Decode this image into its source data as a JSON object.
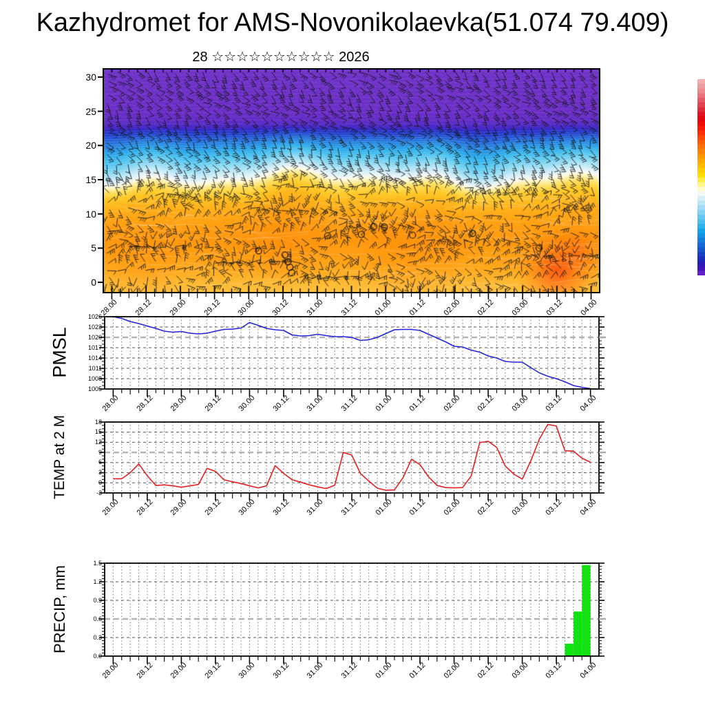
{
  "title": "Kazhydromet for AMS-Novonikolaevka(51.074 79.409)",
  "subtitle": {
    "text": "28 ☆☆☆☆☆☆☆☆☆☆ 2026"
  },
  "time_axis": {
    "step_hours": 3,
    "label_step_hours": 12,
    "labels": [
      "28.00",
      "28.12",
      "29.00",
      "29.12",
      "30.00",
      "30.12",
      "31.00",
      "31.12",
      "01.00",
      "01.12",
      "02.00",
      "02.12",
      "03.00",
      "03.12",
      "04.00"
    ]
  },
  "chart_data": [
    {
      "id": "wind_time_height_section",
      "type": "heatmap",
      "ylabel": "",
      "ylim": [
        0,
        30
      ],
      "yticks": [
        0,
        5,
        10,
        15,
        20,
        25,
        30
      ],
      "x_labels": [
        "28.00",
        "28.12",
        "29.00",
        "29.12",
        "30.00",
        "30.12",
        "31.00",
        "31.12",
        "01.00",
        "01.12",
        "02.00",
        "02.12",
        "03.00",
        "03.12",
        "04.00"
      ],
      "description": "Time-height cross-section: wind barbs over temperature-shaded bands (warm orange near surface, pale band near 15, cyan-blue 16-22, violet above 22.5); reddish hot spot near surface at 03.12-03.18",
      "gradient_stops": [
        {
          "h": -1.5,
          "color": "#FFC240"
        },
        {
          "h": 0.0,
          "color": "#FFBA34"
        },
        {
          "h": 2.0,
          "color": "#FFAA1E"
        },
        {
          "h": 4.0,
          "color": "#FFA014"
        },
        {
          "h": 6.0,
          "color": "#FF9A10"
        },
        {
          "h": 8.0,
          "color": "#FF9E12"
        },
        {
          "h": 10.0,
          "color": "#FFA818"
        },
        {
          "h": 12.0,
          "color": "#FFBA20"
        },
        {
          "h": 13.0,
          "color": "#FFCA2A"
        },
        {
          "h": 14.0,
          "color": "#FFDE5C"
        },
        {
          "h": 14.7,
          "color": "#FFF0A6"
        },
        {
          "h": 15.2,
          "color": "#FFFBE6"
        },
        {
          "h": 15.7,
          "color": "#E6F4FA"
        },
        {
          "h": 16.5,
          "color": "#BCE8F7"
        },
        {
          "h": 17.5,
          "color": "#84D7F3"
        },
        {
          "h": 18.5,
          "color": "#4FC5F0"
        },
        {
          "h": 19.5,
          "color": "#2BAAEB"
        },
        {
          "h": 20.4,
          "color": "#2787E2"
        },
        {
          "h": 21.1,
          "color": "#2564D8"
        },
        {
          "h": 21.7,
          "color": "#2244CE"
        },
        {
          "h": 22.2,
          "color": "#2531C9"
        },
        {
          "h": 22.7,
          "color": "#4A2AC7"
        },
        {
          "h": 23.5,
          "color": "#622DC7"
        },
        {
          "h": 25.0,
          "color": "#6C30C8"
        },
        {
          "h": 31.2,
          "color": "#7134C9"
        }
      ],
      "hot_patches": [
        {
          "t": 0.915,
          "h": 1.8,
          "r": 62,
          "color": "rgba(250,60,16,0.72)"
        },
        {
          "t": 0.955,
          "h": 4.5,
          "r": 45,
          "color": "rgba(250,80,20,0.40)"
        },
        {
          "t": 0.36,
          "h": 6.5,
          "r": 75,
          "color": "rgba(255,128,0,0.32)"
        },
        {
          "t": 0.62,
          "h": 5.0,
          "r": 85,
          "color": "rgba(255,132,6,0.28)"
        },
        {
          "t": 0.08,
          "h": 3.0,
          "r": 60,
          "color": "rgba(255,146,16,0.28)"
        }
      ],
      "calm_circles": [
        [
          0.313,
          4.6
        ],
        [
          0.366,
          4.0
        ],
        [
          0.372,
          3.0
        ],
        [
          0.376,
          2.2
        ],
        [
          0.38,
          1.4
        ],
        [
          0.452,
          6.8
        ],
        [
          0.52,
          7.0
        ],
        [
          0.545,
          8.15
        ],
        [
          0.566,
          8.1
        ],
        [
          0.623,
          6.9
        ],
        [
          0.744,
          7.15
        ],
        [
          0.878,
          5.0
        ]
      ],
      "colorbar_colors": [
        "#F5AAB2",
        "#F09AA2",
        "#EC8A92",
        "#E87480",
        "#E45C68",
        "#E04450",
        "#DE2C38",
        "#DE1420",
        "#E60810",
        "#F00A06",
        "#FA1800",
        "#FF3000",
        "#FF4800",
        "#FF5E00",
        "#FF7200",
        "#FF8600",
        "#FF9800",
        "#FFAA00",
        "#FFBC00",
        "#FFCE00",
        "#FFDE00",
        "#FFEC40",
        "#FFF688",
        "#FFFBC8",
        "#F2FAF4",
        "#D6F0F9",
        "#BAE6F6",
        "#9EDCF4",
        "#82D2F2",
        "#66C8F0",
        "#4ABEEE",
        "#2EB2EC",
        "#16A4E8",
        "#1690E2",
        "#167CDA",
        "#1668D2",
        "#1654CA",
        "#1840C2",
        "#1A2CBA",
        "#2A1CB6",
        "#4414BE",
        "#6420C8"
      ]
    },
    {
      "id": "pmsl",
      "type": "line",
      "ylabel": "PMSL",
      "units": "hPa",
      "color": "#2323DC",
      "ylim": [
        1005,
        1026
      ],
      "yticks": [
        1026,
        1023,
        1020,
        1017,
        1014,
        1011,
        1008,
        1005
      ],
      "minor_step": 1,
      "emphasized_gridline": 1020,
      "x_step_hours": 3,
      "x_labels": [
        "28.00",
        "28.12",
        "29.00",
        "29.12",
        "30.00",
        "30.12",
        "31.00",
        "31.12",
        "01.00",
        "01.12",
        "02.00",
        "02.12",
        "03.00",
        "03.12",
        "04.00"
      ],
      "values": [
        1026.0,
        1025.5,
        1024.6,
        1024.0,
        1023.3,
        1022.6,
        1021.8,
        1021.5,
        1021.7,
        1021.2,
        1021.0,
        1021.2,
        1021.8,
        1022.3,
        1022.4,
        1022.7,
        1024.3,
        1023.5,
        1022.6,
        1022.2,
        1022.0,
        1020.7,
        1020.4,
        1020.5,
        1020.9,
        1020.5,
        1020.2,
        1020.2,
        1020.0,
        1019.1,
        1019.3,
        1020.0,
        1021.1,
        1022.2,
        1022.3,
        1022.3,
        1022.0,
        1020.9,
        1019.8,
        1018.7,
        1017.4,
        1017.2,
        1016.3,
        1015.7,
        1014.6,
        1014.0,
        1013.0,
        1012.8,
        1012.8,
        1011.2,
        1009.7,
        1008.7,
        1008.0,
        1007.1,
        1006.0,
        1005.5,
        1005.1
      ]
    },
    {
      "id": "temp2m",
      "type": "line",
      "ylabel": "TEMP at 2 M",
      "units": "degC",
      "color": "#E62020",
      "ylim": [
        -3,
        18
      ],
      "yticks": [
        18,
        15,
        12,
        9,
        6,
        3,
        0,
        -3
      ],
      "minor_step": 1,
      "emphasized_gridline": 9,
      "x_step_hours": 3,
      "x_labels": [
        "28.00",
        "28.12",
        "29.00",
        "29.12",
        "30.00",
        "30.12",
        "31.00",
        "31.12",
        "01.00",
        "01.12",
        "02.00",
        "02.12",
        "03.00",
        "03.12",
        "04.00"
      ],
      "values": [
        1.2,
        1.2,
        3.0,
        5.6,
        2.1,
        -0.8,
        -0.6,
        -0.9,
        -1.3,
        -0.9,
        -0.5,
        4.3,
        3.4,
        0.9,
        0.3,
        -0.2,
        -0.9,
        -1.5,
        -0.9,
        5.1,
        2.8,
        0.9,
        0.2,
        -0.6,
        -1.2,
        -1.7,
        -0.7,
        9.0,
        8.2,
        2.8,
        0.5,
        -1.6,
        -2.2,
        -2.1,
        1.5,
        7.0,
        5.4,
        1.8,
        -0.8,
        -1.4,
        -1.5,
        -1.4,
        2.0,
        11.9,
        12.3,
        10.5,
        5.0,
        2.6,
        1.1,
        6.5,
        12.9,
        17.3,
        16.8,
        9.5,
        9.4,
        7.3,
        6.1
      ]
    },
    {
      "id": "precip",
      "type": "bar",
      "ylabel": "PRECIP, mm",
      "units": "mm per 3h",
      "color": "#12E212",
      "ylim": [
        0,
        1.5
      ],
      "yticks": [
        1.5,
        1.2,
        0.9,
        0.6,
        0.3,
        0.0
      ],
      "minor_step": 0.05,
      "emphasized_gridline": 0.6,
      "x_step_hours": 3,
      "x_labels": [
        "28.00",
        "28.12",
        "29.00",
        "29.12",
        "30.00",
        "30.12",
        "31.00",
        "31.12",
        "01.00",
        "01.12",
        "02.00",
        "02.12",
        "03.00",
        "03.12",
        "04.00"
      ],
      "values": [
        0,
        0,
        0,
        0,
        0,
        0,
        0,
        0,
        0,
        0,
        0,
        0,
        0,
        0,
        0,
        0,
        0,
        0,
        0,
        0,
        0,
        0,
        0,
        0,
        0,
        0,
        0,
        0,
        0,
        0,
        0,
        0,
        0,
        0,
        0,
        0,
        0,
        0,
        0,
        0,
        0,
        0,
        0,
        0,
        0,
        0,
        0,
        0,
        0,
        0,
        0,
        0,
        0,
        0.2,
        0.72,
        1.47
      ],
      "nonzero_bars": [
        {
          "start": "03.15",
          "end": "03.18",
          "mm": 0.2
        },
        {
          "start": "03.18",
          "end": "03.21",
          "mm": 0.72
        },
        {
          "start": "03.21",
          "end": "04.00",
          "mm": 1.47
        }
      ]
    }
  ]
}
